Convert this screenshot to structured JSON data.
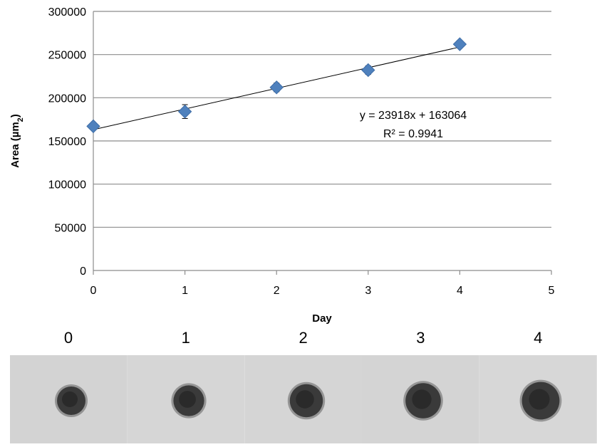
{
  "chart_data": {
    "type": "scatter",
    "x": [
      0,
      1,
      2,
      3,
      4
    ],
    "series": [
      {
        "values": [
          167000,
          184000,
          212000,
          232000,
          262000
        ],
        "errors": [
          4000,
          8000,
          5000,
          5000,
          4000
        ],
        "color": "#4f81bd",
        "marker": "diamond"
      }
    ],
    "trendline": {
      "type": "linear",
      "slope": 23918,
      "intercept": 163064,
      "equation": "y = 23918x + 163064",
      "r_squared": "R² = 0.9941"
    },
    "xlabel": "Day",
    "ylabel": "Area (µm",
    "ylabel_subscript": "2",
    "ylabel_suffix": ")",
    "xlim": [
      0,
      5
    ],
    "ylim": [
      0,
      300000
    ],
    "xticks": [
      0,
      1,
      2,
      3,
      4,
      5
    ],
    "yticks": [
      0,
      50000,
      100000,
      150000,
      200000,
      250000,
      300000
    ],
    "grid": "horizontal",
    "legend": "none"
  },
  "image_panels": {
    "labels": [
      "0",
      "1",
      "2",
      "3",
      "4"
    ],
    "backgrounds": [
      "#d3d3d3",
      "#d6d6d6",
      "#d5d5d5",
      "#d4d4d4",
      "#d7d7d7"
    ],
    "spheroid_color": "#3a3a3a"
  }
}
